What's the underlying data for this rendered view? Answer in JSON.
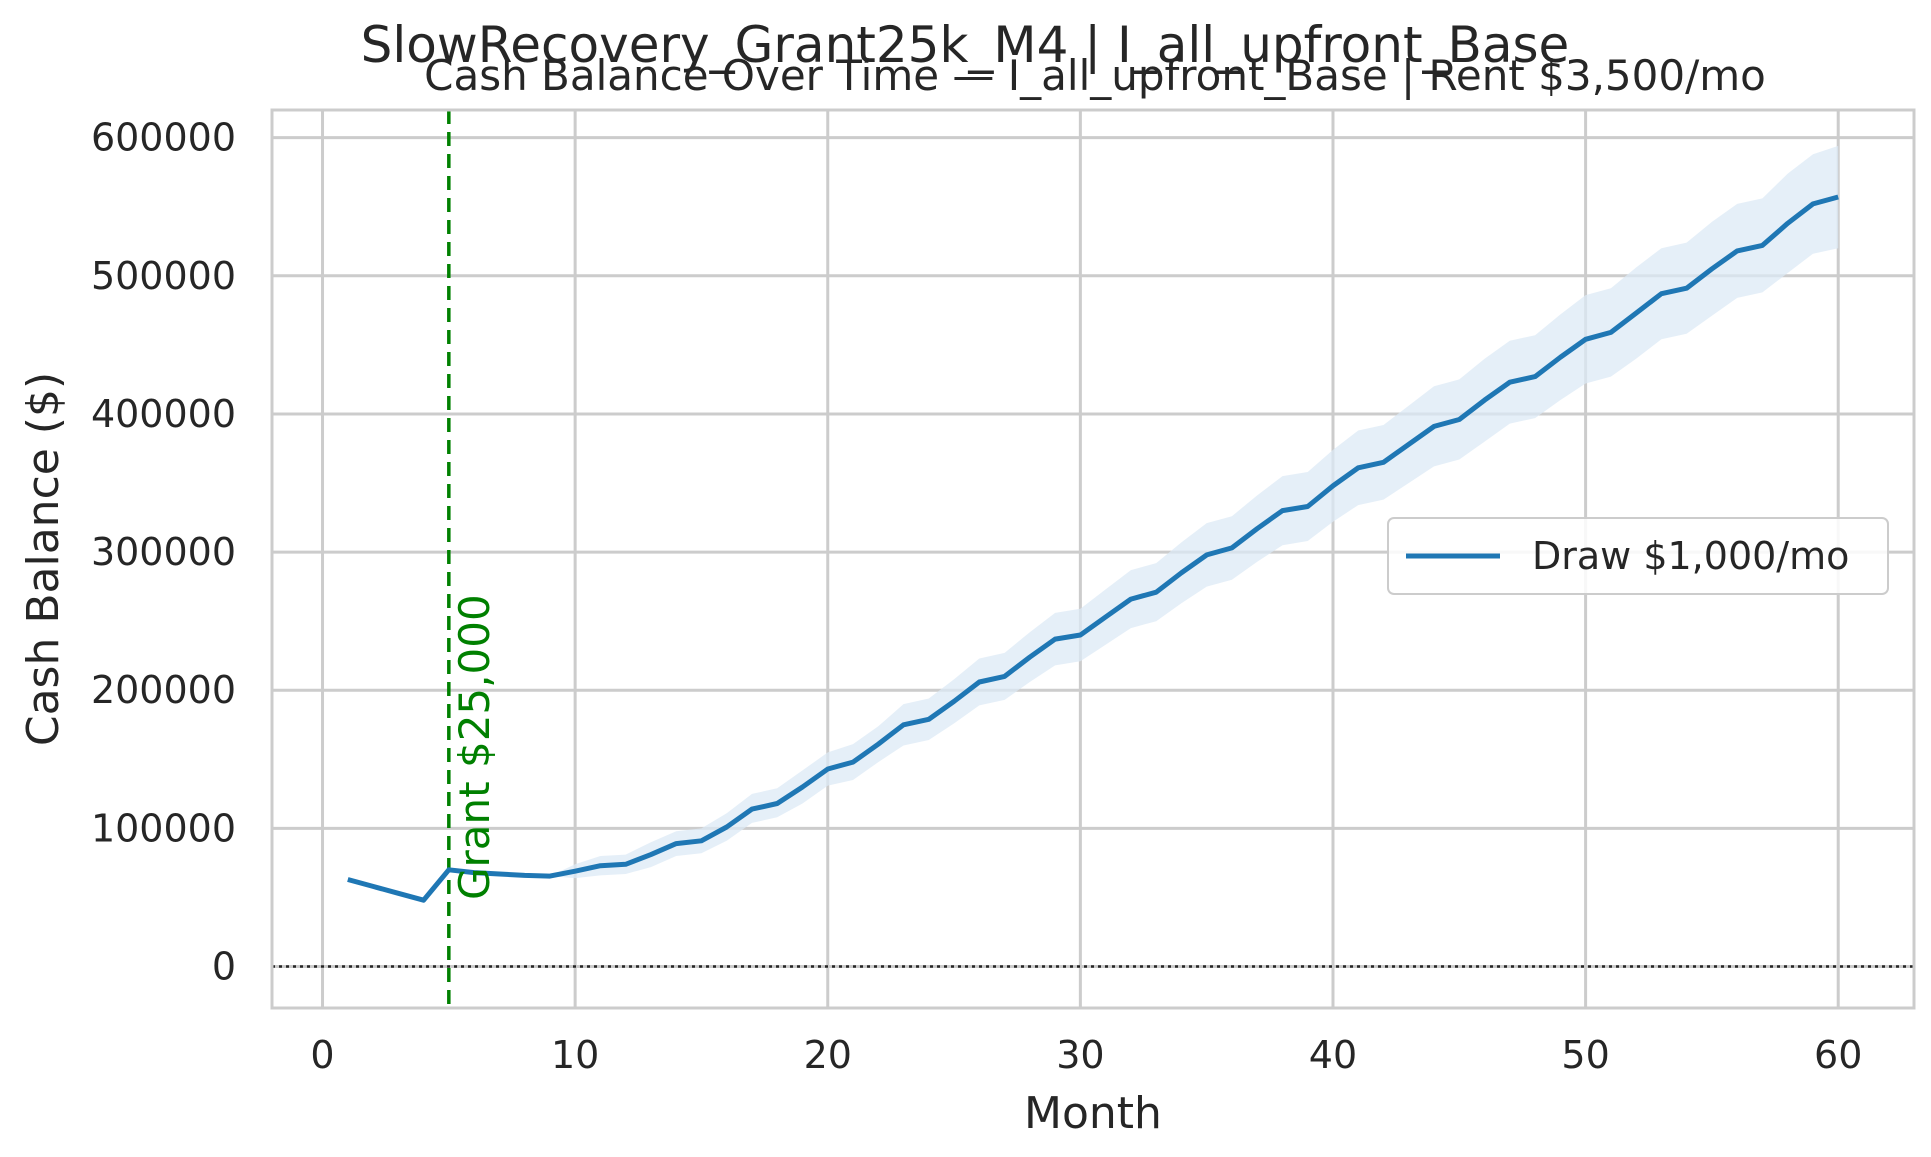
{
  "suptitle": "SlowRecovery_Grant25k_M4 | I_all_upfront_Base",
  "chart_data": {
    "type": "line",
    "title": "Cash Balance Over Time — I_all_upfront_Base | Rent $3,500/mo",
    "xlabel": "Month",
    "ylabel": "Cash Balance ($)",
    "xlim": [
      -2,
      63
    ],
    "ylim": [
      -30000,
      620000
    ],
    "xticks": [
      0,
      10,
      20,
      30,
      40,
      50,
      60
    ],
    "yticks": [
      0,
      100000,
      200000,
      300000,
      400000,
      500000,
      600000
    ],
    "grid": true,
    "legend_position": "center-right",
    "series": [
      {
        "name": "Draw $1,000/mo",
        "color": "#1f77b4",
        "band_color": "#dce9f5",
        "x": [
          1,
          2,
          3,
          4,
          5,
          6,
          7,
          8,
          9,
          10,
          11,
          12,
          13,
          14,
          15,
          16,
          17,
          18,
          19,
          20,
          21,
          22,
          23,
          24,
          25,
          26,
          27,
          28,
          29,
          30,
          31,
          32,
          33,
          34,
          35,
          36,
          37,
          38,
          39,
          40,
          41,
          42,
          43,
          44,
          45,
          46,
          47,
          48,
          49,
          50,
          51,
          52,
          53,
          54,
          55,
          56,
          57,
          58,
          59,
          60
        ],
        "values": [
          63000,
          58000,
          53000,
          48000,
          70000,
          68000,
          67000,
          66000,
          65500,
          69000,
          73000,
          74000,
          81000,
          89000,
          91000,
          101000,
          114000,
          118000,
          130000,
          143000,
          148000,
          161000,
          175000,
          179000,
          192000,
          206000,
          210000,
          224000,
          237000,
          240000,
          253000,
          266000,
          271000,
          285000,
          298000,
          303000,
          317000,
          330000,
          333000,
          348000,
          361000,
          365000,
          378000,
          391000,
          396000,
          410000,
          423000,
          427000,
          441000,
          454000,
          459000,
          473000,
          487000,
          491000,
          505000,
          518000,
          522000,
          538000,
          552000,
          557000
        ],
        "lower": [
          63000,
          58000,
          53000,
          48000,
          70000,
          68000,
          67000,
          66000,
          65500,
          64000,
          66000,
          67000,
          72000,
          80000,
          82000,
          91000,
          104000,
          108000,
          118000,
          131000,
          135000,
          148000,
          160000,
          164000,
          176000,
          189000,
          193000,
          206000,
          218000,
          221000,
          233000,
          245000,
          250000,
          263000,
          275000,
          280000,
          293000,
          305000,
          308000,
          322000,
          334000,
          338000,
          350000,
          362000,
          367000,
          380000,
          393000,
          397000,
          410000,
          422000,
          427000,
          440000,
          454000,
          458000,
          471000,
          484000,
          488000,
          502000,
          516000,
          520000
        ],
        "upper": [
          63000,
          58000,
          53000,
          48000,
          70000,
          68000,
          67000,
          66000,
          65500,
          74000,
          80000,
          81000,
          90000,
          98000,
          100000,
          111000,
          125000,
          129000,
          142000,
          155000,
          161000,
          174000,
          190000,
          194000,
          208000,
          223000,
          227000,
          242000,
          256000,
          259000,
          273000,
          287000,
          292000,
          307000,
          321000,
          326000,
          341000,
          355000,
          358000,
          374000,
          388000,
          392000,
          406000,
          420000,
          425000,
          440000,
          453000,
          457000,
          472000,
          486000,
          491000,
          506000,
          520000,
          524000,
          539000,
          552000,
          556000,
          574000,
          588000,
          594000
        ]
      }
    ],
    "annotations": [
      {
        "type": "vline",
        "x": 5,
        "style": "dashed",
        "color": "#008000",
        "label": "Grant $25,000"
      },
      {
        "type": "hline",
        "y": 0,
        "style": "dotted",
        "color": "#262626"
      }
    ]
  }
}
